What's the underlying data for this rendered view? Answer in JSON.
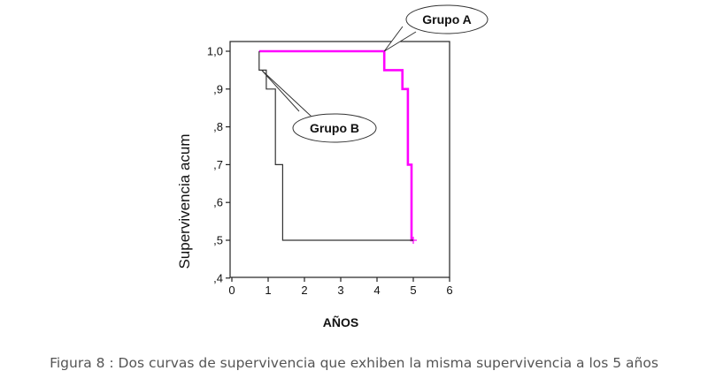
{
  "chart_data": {
    "type": "line",
    "title": "",
    "xlabel": "AÑOS",
    "ylabel": "Supervivencia acum",
    "xlim": [
      0,
      6
    ],
    "ylim": [
      0.4,
      1.05
    ],
    "x_ticks": [
      0,
      1,
      2,
      3,
      4,
      5,
      6
    ],
    "x_tick_labels": [
      "0",
      "1",
      "2",
      "3",
      "4",
      "5",
      "6"
    ],
    "y_ticks": [
      1.0,
      0.9,
      0.8,
      0.7,
      0.6,
      0.5,
      0.4
    ],
    "y_tick_labels": [
      "1,0",
      ",9",
      ",8",
      ",7",
      ",6",
      ",5",
      ",4"
    ],
    "grid": false,
    "step": true,
    "series": [
      {
        "name": "Grupo A",
        "color": "#ff00ff",
        "x": [
          0.75,
          4.2,
          4.2,
          4.5,
          4.5,
          4.7,
          4.7,
          4.85,
          4.85,
          4.95,
          4.95,
          5.0
        ],
        "y": [
          1.0,
          1.0,
          0.95,
          0.95,
          0.95,
          0.95,
          0.9,
          0.9,
          0.7,
          0.7,
          0.5,
          0.5
        ],
        "censor_x": [
          5.0
        ],
        "censor_y": [
          0.5
        ]
      },
      {
        "name": "Grupo B",
        "color": "#333333",
        "x": [
          0.75,
          0.75,
          0.95,
          0.95,
          1.2,
          1.2,
          1.4,
          1.4,
          5.0
        ],
        "y": [
          1.0,
          0.95,
          0.95,
          0.9,
          0.9,
          0.7,
          0.7,
          0.5,
          0.5
        ]
      }
    ],
    "annotations": [
      {
        "text": "Grupo A",
        "point_x": 4.2,
        "point_y": 1.0
      },
      {
        "text": "Grupo B",
        "point_x": 0.82,
        "point_y": 0.95
      }
    ]
  },
  "caption": "Figura 8 : Dos curvas de supervivencia que exhiben la misma supervivencia a los 5 años"
}
